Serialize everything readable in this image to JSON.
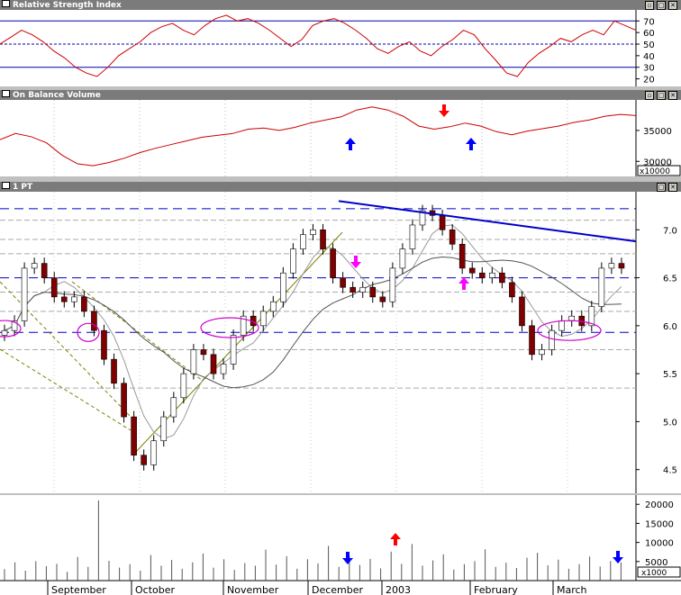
{
  "panels": {
    "rsi": {
      "title": "Relative Strength Index",
      "ticks": [
        "70",
        "60",
        "50",
        "40",
        "30",
        "20"
      ]
    },
    "obv": {
      "title": "On Balance Volume",
      "ticks": [
        "35000",
        "30000"
      ],
      "unit": "x10000"
    },
    "price": {
      "title": "1 PT",
      "ticks": [
        "7.0",
        "6.5",
        "6.0",
        "5.5",
        "5.0",
        "4.5"
      ]
    },
    "volume": {
      "ticks": [
        "20000",
        "15000",
        "10000",
        "5000"
      ],
      "unit": "x1000"
    }
  },
  "window_buttons": {
    "minimize": "▫",
    "maximize": "□",
    "close": "✕"
  },
  "x_axis": {
    "labels": [
      "September",
      "October",
      "November",
      "December",
      "2003",
      "February",
      "March"
    ]
  },
  "colors": {
    "rsi_line": "#cc0000",
    "obv_line": "#cc0000",
    "up_candle": "#ffffff",
    "down_candle": "#800000",
    "trendline": "#0000cc",
    "support_line": "#0000cc",
    "marker_blue": "#0000ff",
    "marker_red": "#ff0000",
    "marker_magenta": "#ff00ff",
    "circle": "#cc00cc",
    "dashed_channel": "#808000"
  },
  "chart_data": [
    {
      "type": "line",
      "title": "Relative Strength Index",
      "ylim": [
        15,
        78
      ],
      "reference_lines": [
        70,
        50,
        30
      ],
      "series": [
        {
          "values": [
            50,
            56,
            62,
            58,
            52,
            44,
            38,
            30,
            25,
            22,
            30,
            40,
            46,
            52,
            60,
            65,
            68,
            62,
            58,
            66,
            72,
            75,
            70,
            72,
            68,
            62,
            55,
            48,
            54,
            66,
            70,
            72,
            68,
            62,
            55,
            46,
            42,
            48,
            52,
            44,
            40,
            48,
            54,
            62,
            58,
            46,
            36,
            25,
            22,
            34,
            42,
            48,
            55,
            52,
            58,
            62,
            58,
            70,
            66,
            62
          ]
        }
      ]
    },
    {
      "type": "line",
      "title": "On Balance Volume",
      "ylim": [
        28000,
        39500
      ],
      "series": [
        {
          "values": [
            33500,
            34500,
            34000,
            33000,
            31000,
            29600,
            29300,
            29800,
            30500,
            31400,
            32100,
            32700,
            33300,
            33900,
            34200,
            34500,
            35200,
            35400,
            35000,
            35500,
            36200,
            36700,
            37200,
            38300,
            38800,
            38300,
            37300,
            35700,
            35200,
            35600,
            36200,
            35700,
            34800,
            34300,
            34900,
            35300,
            35700,
            36300,
            36700,
            37300,
            37600,
            37400
          ]
        }
      ]
    },
    {
      "type": "line",
      "title": "1 PT",
      "ylim": [
        4.3,
        7.35
      ],
      "ohlc_close": [
        5.95,
        6.05,
        6.6,
        6.65,
        6.5,
        6.3,
        6.25,
        6.3,
        6.15,
        5.95,
        5.65,
        5.4,
        5.05,
        4.65,
        4.55,
        4.8,
        5.05,
        5.25,
        5.5,
        5.75,
        5.7,
        5.5,
        5.6,
        5.9,
        6.1,
        6.0,
        6.15,
        6.25,
        6.55,
        6.8,
        6.95,
        7.0,
        6.8,
        6.5,
        6.4,
        6.35,
        6.4,
        6.3,
        6.25,
        6.6,
        6.8,
        7.05,
        7.2,
        7.15,
        7.0,
        6.85,
        6.6,
        6.55,
        6.5,
        6.55,
        6.45,
        6.3,
        6.0,
        5.7,
        5.75,
        5.95,
        6.05,
        6.1,
        6.0,
        6.2,
        6.6,
        6.65,
        6.6
      ],
      "reference_lines": [
        7.22,
        6.5,
        5.93
      ],
      "trendline": [
        7.3,
        6.88
      ]
    },
    {
      "type": "bar",
      "ylim": [
        0,
        21000
      ],
      "values": [
        3000,
        4800,
        2600,
        5100,
        3800,
        4400,
        2300,
        6200,
        3600,
        21000,
        5200,
        3400,
        4300,
        2600,
        6700,
        3900,
        5400,
        3100,
        4800,
        7100,
        3400,
        5600,
        2800,
        4600,
        3900,
        8100,
        4200,
        6400,
        3100,
        5600,
        4500,
        9100,
        3600,
        6600,
        4100,
        5700,
        3200,
        7600,
        4400,
        9600,
        3900,
        5300,
        6900,
        2900,
        4300,
        5100,
        8200,
        3600,
        4700,
        3300,
        6000,
        7300,
        4000,
        5500,
        3100,
        4300,
        6300,
        3700,
        5100,
        4800
      ]
    }
  ]
}
